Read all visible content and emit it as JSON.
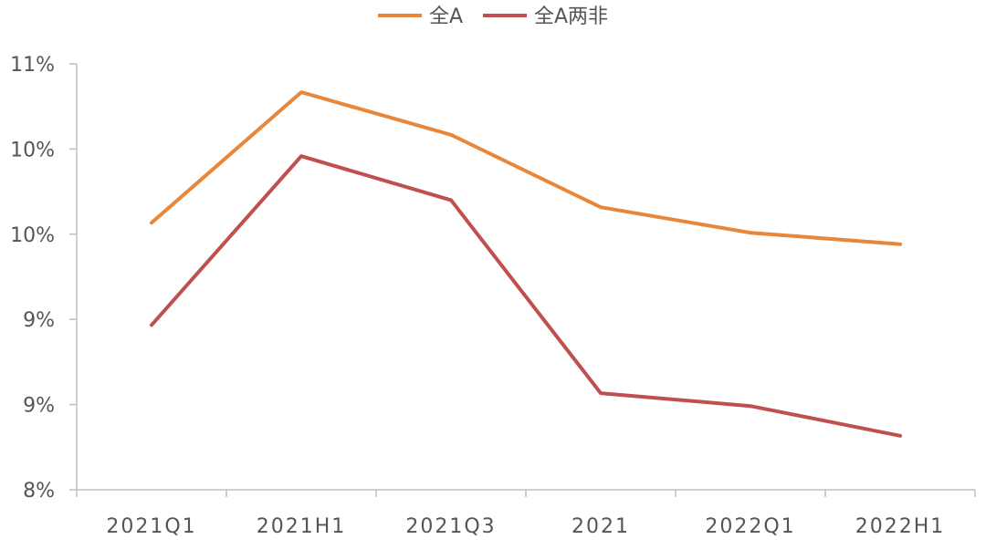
{
  "chart_data": {
    "type": "line",
    "categories": [
      "2021Q1",
      "2021H1",
      "2021Q3",
      "2021",
      "2022Q1",
      "2022H1"
    ],
    "series": [
      {
        "name": "全A",
        "color": "#E8873A",
        "values": [
          9.88,
          10.8,
          10.5,
          9.99,
          9.81,
          9.73
        ]
      },
      {
        "name": "全A两非",
        "color": "#C0504D",
        "values": [
          9.16,
          10.35,
          10.04,
          8.68,
          8.59,
          8.38
        ]
      }
    ],
    "y_tick_labels": [
      "8%",
      "9%",
      "9%",
      "10%",
      "10%",
      "11%"
    ],
    "ylim": [
      8.0,
      11.0
    ],
    "grid": false,
    "legend_position": "top-center",
    "title": "",
    "xlabel": "",
    "ylabel": ""
  }
}
